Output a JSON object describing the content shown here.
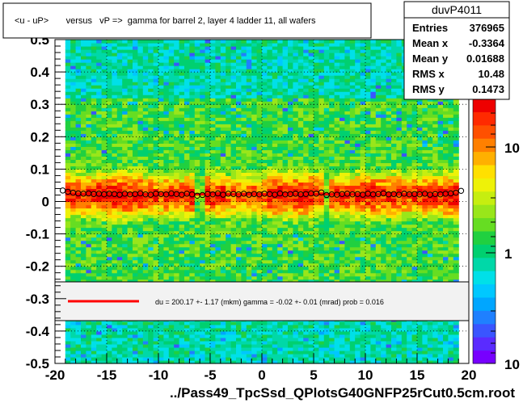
{
  "chart_data": {
    "type": "heatmap",
    "title": "<u - uP>       versus   vP =>  gamma for barrel 2, layer 4 ladder 11, all wafers",
    "xlabel": "../Pass49_TpcSsd_QPlotsG40GNFP25rCut0.5cm.root",
    "ylabel": "",
    "xlim": [
      -20,
      20
    ],
    "ylim": [
      -0.5,
      0.5
    ],
    "x_ticks": [
      "-20",
      "-15",
      "-10",
      "-5",
      "0",
      "5",
      "10",
      "15",
      "20"
    ],
    "y_ticks": [
      "-0.5",
      "-0.4",
      "-0.3",
      "-0.2",
      "-0.1",
      "0",
      "0.1",
      "0.2",
      "0.3",
      "0.4",
      "0.5"
    ],
    "z_scale": "log",
    "z_ticks": [
      "10",
      "1",
      "10"
    ],
    "grid": true,
    "stats": {
      "name": "duvP4011",
      "rows": [
        {
          "label": "Entries",
          "value": "376965"
        },
        {
          "label": "Mean x",
          "value": "-0.3364"
        },
        {
          "label": "Mean y",
          "value": "0.01688"
        },
        {
          "label": "RMS x",
          "value": "10.48"
        },
        {
          "label": "RMS y",
          "value": "0.1473"
        }
      ]
    },
    "fit_legend": "du =  200.17 +-  1.17 (mkm) gamma =   -0.02 +-  0.01 (mrad) prob = 0.016",
    "fit_line": {
      "color": "#ff0000",
      "x": [
        -19,
        19
      ],
      "y": [
        0.022,
        0.022
      ]
    },
    "profile_points": {
      "x": [
        -19.25,
        -18.75,
        -18.25,
        -17.75,
        -17.25,
        -16.75,
        -16.25,
        -15.75,
        -15.25,
        -14.75,
        -14.25,
        -13.75,
        -13.25,
        -12.75,
        -12.25,
        -11.75,
        -11.25,
        -10.75,
        -10.25,
        -9.75,
        -9.25,
        -8.75,
        -8.25,
        -7.75,
        -7.25,
        -6.75,
        -6.25,
        -5.75,
        -5.25,
        -4.75,
        -4.25,
        -3.75,
        -3.25,
        -2.75,
        -2.25,
        -1.75,
        -1.25,
        -0.75,
        -0.25,
        0.25,
        0.75,
        1.25,
        1.75,
        2.25,
        2.75,
        3.25,
        3.75,
        4.25,
        4.75,
        5.25,
        5.75,
        6.25,
        6.75,
        7.25,
        7.75,
        8.25,
        8.75,
        9.25,
        9.75,
        10.25,
        10.75,
        11.25,
        11.75,
        12.25,
        12.75,
        13.25,
        13.75,
        14.25,
        14.75,
        15.25,
        15.75,
        16.25,
        16.75,
        17.25,
        17.75,
        18.25,
        18.75,
        19.25
      ],
      "y": [
        0.034,
        0.03,
        0.027,
        0.025,
        0.024,
        0.025,
        0.023,
        0.024,
        0.022,
        0.024,
        0.023,
        0.021,
        0.024,
        0.022,
        0.023,
        0.025,
        0.022,
        0.021,
        0.024,
        0.023,
        0.022,
        0.025,
        0.023,
        0.021,
        0.024,
        0.022,
        0.018,
        0.02,
        0.023,
        0.022,
        0.025,
        0.021,
        0.024,
        0.023,
        0.022,
        0.024,
        0.021,
        0.023,
        0.022,
        0.024,
        0.023,
        0.021,
        0.025,
        0.022,
        0.023,
        0.024,
        0.022,
        0.023,
        0.025,
        0.024,
        0.028,
        0.02,
        0.022,
        0.021,
        0.023,
        0.024,
        0.022,
        0.023,
        0.021,
        0.024,
        0.022,
        0.023,
        0.025,
        0.022,
        0.023,
        0.021,
        0.024,
        0.022,
        0.023,
        0.022,
        0.024,
        0.021,
        0.023,
        0.022,
        0.024,
        0.025,
        0.027,
        0.033
      ]
    }
  }
}
